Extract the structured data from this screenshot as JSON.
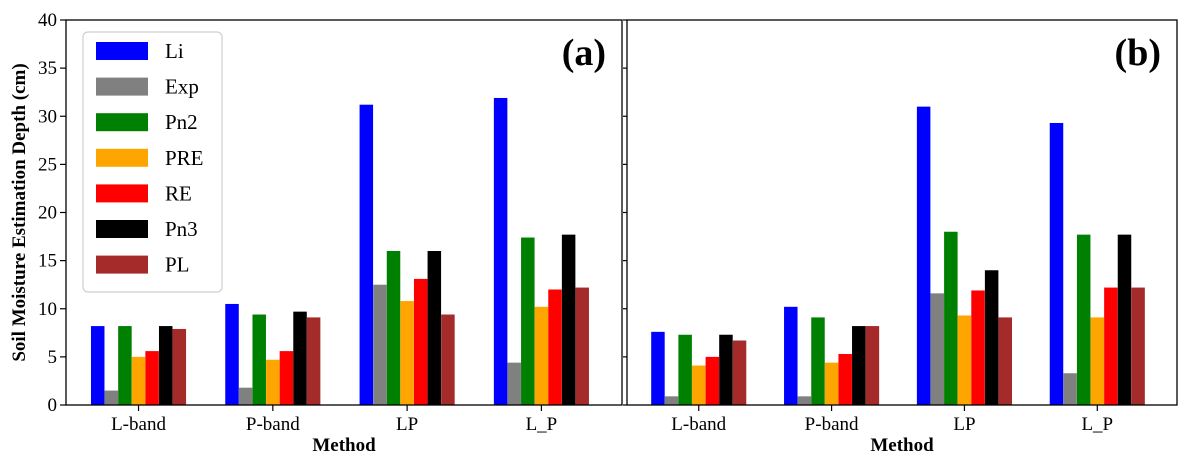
{
  "chart_data": [
    {
      "type": "bar",
      "panel_label": "(a)",
      "xlabel": "Method",
      "ylabel": "Soil Moisture Estimation Depth (cm)",
      "ylim": [
        0,
        40
      ],
      "yticks": [
        0,
        5,
        10,
        15,
        20,
        25,
        30,
        35,
        40
      ],
      "categories": [
        "L-band",
        "P-band",
        "LP",
        "L_P"
      ],
      "legend": "top-left",
      "series": [
        {
          "name": "Li",
          "color": "#0000ff",
          "values": [
            8.2,
            10.5,
            31.2,
            31.9
          ]
        },
        {
          "name": "Exp",
          "color": "#808080",
          "values": [
            1.5,
            1.8,
            12.5,
            4.4
          ]
        },
        {
          "name": "Pn2",
          "color": "#008000",
          "values": [
            8.2,
            9.4,
            16.0,
            17.4
          ]
        },
        {
          "name": "PRE",
          "color": "#ffa500",
          "values": [
            5.0,
            4.7,
            10.8,
            10.2
          ]
        },
        {
          "name": "RE",
          "color": "#ff0000",
          "values": [
            5.6,
            5.6,
            13.1,
            12.0
          ]
        },
        {
          "name": "Pn3",
          "color": "#000000",
          "values": [
            8.2,
            9.7,
            16.0,
            17.7
          ]
        },
        {
          "name": "PL",
          "color": "#a52a2a",
          "values": [
            7.9,
            9.1,
            9.4,
            12.2
          ]
        }
      ]
    },
    {
      "type": "bar",
      "panel_label": "(b)",
      "xlabel": "Method",
      "ylabel": "",
      "ylim": [
        0,
        40
      ],
      "categories": [
        "L-band",
        "P-band",
        "LP",
        "L_P"
      ],
      "series": [
        {
          "name": "Li",
          "color": "#0000ff",
          "values": [
            7.6,
            10.2,
            31.0,
            29.3
          ]
        },
        {
          "name": "Exp",
          "color": "#808080",
          "values": [
            0.9,
            0.9,
            11.6,
            3.3
          ]
        },
        {
          "name": "Pn2",
          "color": "#008000",
          "values": [
            7.3,
            9.1,
            18.0,
            17.7
          ]
        },
        {
          "name": "PRE",
          "color": "#ffa500",
          "values": [
            4.1,
            4.4,
            9.3,
            9.1
          ]
        },
        {
          "name": "RE",
          "color": "#ff0000",
          "values": [
            5.0,
            5.3,
            11.9,
            12.2
          ]
        },
        {
          "name": "Pn3",
          "color": "#000000",
          "values": [
            7.3,
            8.2,
            14.0,
            17.7
          ]
        },
        {
          "name": "PL",
          "color": "#a52a2a",
          "values": [
            6.7,
            8.2,
            9.1,
            12.2
          ]
        }
      ]
    }
  ]
}
